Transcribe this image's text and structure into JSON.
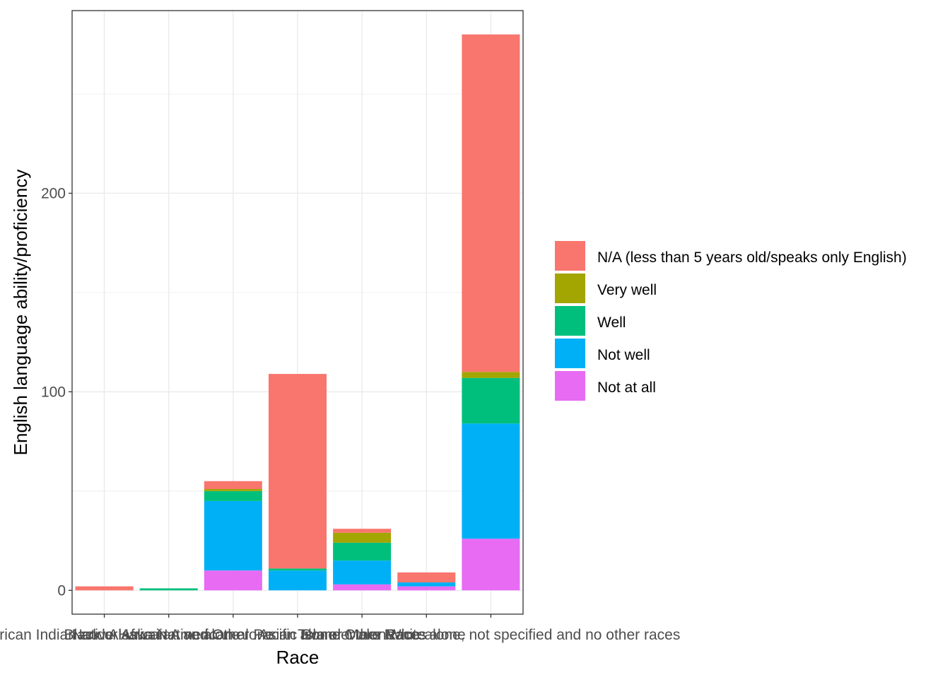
{
  "chart_data": {
    "type": "bar",
    "stacked": true,
    "xlabel": "Race",
    "ylabel": "English language ability/proficiency",
    "ylim": [
      -12,
      292
    ],
    "yticks": [
      0,
      100,
      200
    ],
    "grid": true,
    "legend_position": "right",
    "categories": [
      "American Indian and Alaska Native alone",
      "Black or African American alone",
      "Native Hawaiian and Other Pacific Islander alone",
      "Asian alone",
      "Two or More Races",
      "White alone",
      "Some Other Race alone, not specified and no other races"
    ],
    "series": [
      {
        "name": "Not at all",
        "color": "#E76BF3",
        "values": [
          0,
          0,
          10,
          0,
          3,
          2,
          26
        ]
      },
      {
        "name": "Not well",
        "color": "#00B0F6",
        "values": [
          0,
          0,
          35,
          10,
          12,
          2,
          58
        ]
      },
      {
        "name": "Well",
        "color": "#00BF7D",
        "values": [
          0,
          1,
          5,
          1,
          9,
          0,
          23
        ]
      },
      {
        "name": "Very well",
        "color": "#A3A500",
        "values": [
          0,
          0,
          1,
          0,
          5,
          0,
          3
        ]
      },
      {
        "name": "N/A (less than 5 years old/speaks only English)",
        "color": "#F8766D",
        "values": [
          2,
          0,
          4,
          98,
          2,
          5,
          170
        ]
      }
    ],
    "legend_order": [
      "N/A (less than 5 years old/speaks only English)",
      "Very well",
      "Well",
      "Not well",
      "Not at all"
    ]
  }
}
